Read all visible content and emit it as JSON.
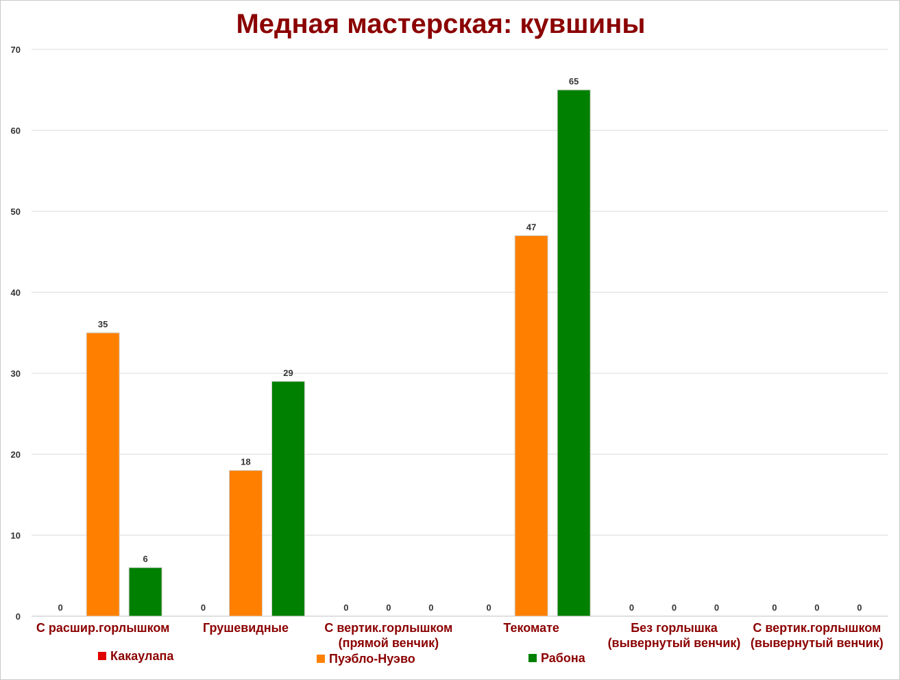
{
  "chart_data": {
    "type": "bar",
    "title": "Медная мастерская: кувшины",
    "xlabel": "",
    "ylabel": "",
    "ylim": [
      0,
      70
    ],
    "yticks": [
      0,
      10,
      20,
      30,
      40,
      50,
      60,
      70
    ],
    "grid": true,
    "legend_position": "bottom",
    "categories": [
      [
        "С расшир.горлышком"
      ],
      [
        "Грушевидные"
      ],
      [
        "С вертик.горлышком",
        "(прямой венчик)"
      ],
      [
        "Текомате"
      ],
      [
        "Без горлышка",
        "(вывернутый венчик)"
      ],
      [
        "С вертик.горлышком",
        "(вывернутый венчик)"
      ]
    ],
    "series": [
      {
        "name": "Какаулапа",
        "color": "#e00000",
        "values": [
          0,
          0,
          0,
          0,
          0,
          0
        ]
      },
      {
        "name": "Пуэбло-Нуэво",
        "color": "#ff8000",
        "values": [
          35,
          18,
          0,
          47,
          0,
          0
        ]
      },
      {
        "name": "Рабона",
        "color": "#008000",
        "values": [
          6,
          29,
          0,
          65,
          0,
          0
        ]
      }
    ]
  }
}
